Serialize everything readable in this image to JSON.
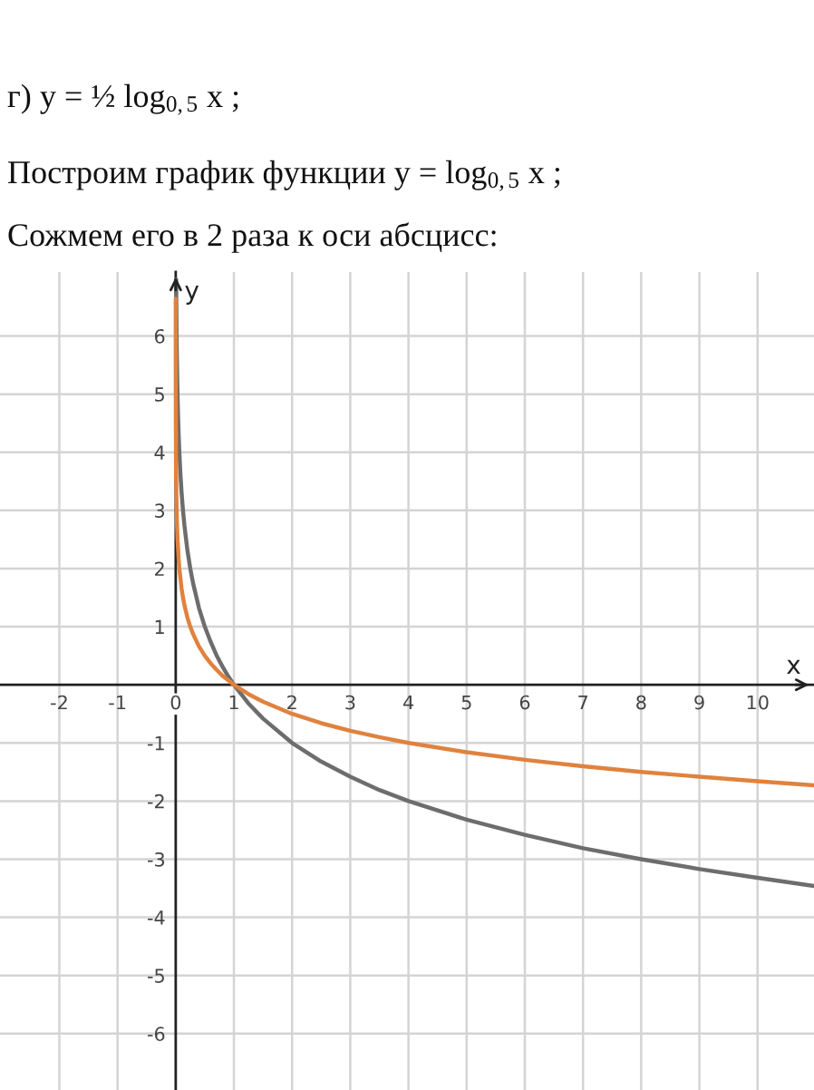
{
  "chart_data": {
    "type": "line",
    "title": "г) y = ½ log$_{0,5}$ x ;",
    "subtitle": "Построим график функции y = log$_{0,5}$ x ;",
    "annotations": [
      "Сожмем его в 2 раза к оси абсцисс:"
    ],
    "xlabel": "x",
    "ylabel": "y",
    "xlim": [
      -3.02,
      10.97
    ],
    "ylim": [
      -6.97,
      7.1
    ],
    "xticks": [
      -2,
      -1,
      0,
      1,
      2,
      3,
      4,
      5,
      6,
      7,
      8,
      9,
      10
    ],
    "yticks": [
      -6,
      -5,
      -4,
      -3,
      -2,
      -1,
      1,
      2,
      3,
      4,
      5,
      6
    ],
    "grid": true,
    "marker": "none",
    "line_style": "solid",
    "series": [
      {
        "color": "#6d6d6d",
        "x": [
          0.008,
          0.01,
          0.015,
          0.02,
          0.03,
          0.04,
          0.05,
          0.0625,
          0.08,
          0.1,
          0.125,
          0.15,
          0.2,
          0.25,
          0.3,
          0.4,
          0.5,
          0.6,
          0.7,
          0.8,
          0.9,
          1,
          1.25,
          1.5,
          2,
          2.5,
          3,
          3.5,
          4,
          5,
          6,
          7,
          8,
          9,
          10,
          10.97
        ],
        "values": [
          6.97,
          6.64,
          6.06,
          5.64,
          5.06,
          4.64,
          4.32,
          4,
          3.64,
          3.32,
          3,
          2.74,
          2.32,
          2,
          1.74,
          1.32,
          1,
          0.74,
          0.51,
          0.32,
          0.15,
          0,
          -0.32,
          -0.58,
          -1,
          -1.32,
          -1.58,
          -1.81,
          -2,
          -2.32,
          -2.58,
          -2.81,
          -3,
          -3.17,
          -3.32,
          -3.46
        ]
      },
      {
        "color": "#e0823e",
        "x": [
          0.0001,
          0.0002,
          0.0005,
          0.001,
          0.002,
          0.005,
          0.01,
          0.02,
          0.03,
          0.05,
          0.0625,
          0.1,
          0.125,
          0.15,
          0.2,
          0.25,
          0.3,
          0.4,
          0.5,
          0.6,
          0.7,
          0.8,
          0.9,
          1,
          1.25,
          1.5,
          2,
          2.5,
          3,
          3.5,
          4,
          5,
          6,
          7,
          8,
          9,
          10,
          10.97
        ],
        "values": [
          6.64,
          6.14,
          5.48,
          4.98,
          4.48,
          3.82,
          3.32,
          2.82,
          2.53,
          2.16,
          2,
          1.66,
          1.5,
          1.37,
          1.16,
          1,
          0.87,
          0.66,
          0.5,
          0.37,
          0.26,
          0.16,
          0.08,
          0,
          -0.16,
          -0.29,
          -0.5,
          -0.66,
          -0.79,
          -0.9,
          -1,
          -1.16,
          -1.29,
          -1.4,
          -1.5,
          -1.58,
          -1.66,
          -1.73
        ]
      }
    ]
  }
}
